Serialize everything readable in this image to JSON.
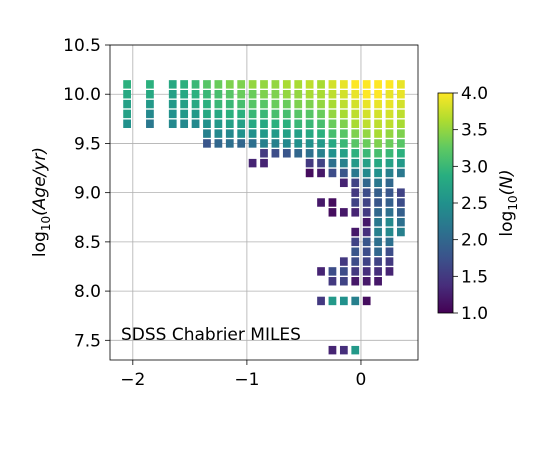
{
  "chart_data": {
    "type": "heatmap",
    "title": "",
    "xlabel": "",
    "xlim": [
      -2.2,
      0.5
    ],
    "ylim": [
      7.3,
      10.5
    ],
    "xticks": [
      -2,
      -1,
      0
    ],
    "xtick_labels": [
      "−2",
      "−1",
      "0"
    ],
    "yticks": [
      7.5,
      8.0,
      8.5,
      9.0,
      9.5,
      10.0,
      10.5
    ],
    "ytick_labels": [
      "7.5",
      "8.0",
      "8.5",
      "9.0",
      "9.5",
      "10.0",
      "10.5"
    ],
    "ylabel_prefix": "log",
    "ylabel_sub": "10",
    "ylabel_main": "(Age/yr)",
    "grid": true,
    "annotation": "SDSS Chabrier MILES",
    "annotation_position": "bottom-left",
    "colormap": "viridis",
    "colorbar": {
      "range": [
        1.0,
        4.0
      ],
      "ticks": [
        "1.0",
        "1.5",
        "2.0",
        "2.5",
        "3.0",
        "3.5",
        "4.0"
      ],
      "label_prefix": "log",
      "label_sub": "10",
      "label_main": "(N)"
    },
    "bin_size": {
      "dx": 0.1,
      "dy": 0.1
    },
    "cells": [
      [
        -2.05,
        10.1,
        2.9
      ],
      [
        -2.05,
        10.0,
        2.8
      ],
      [
        -2.05,
        9.9,
        2.7
      ],
      [
        -2.05,
        9.8,
        2.7
      ],
      [
        -2.05,
        9.7,
        2.5
      ],
      [
        -1.85,
        10.1,
        2.9
      ],
      [
        -1.85,
        10.0,
        2.8
      ],
      [
        -1.85,
        9.9,
        2.6
      ],
      [
        -1.85,
        9.8,
        2.4
      ],
      [
        -1.85,
        9.7,
        2.2
      ],
      [
        -1.65,
        10.1,
        2.8
      ],
      [
        -1.65,
        10.0,
        2.7
      ],
      [
        -1.65,
        9.9,
        2.6
      ],
      [
        -1.65,
        9.8,
        2.5
      ],
      [
        -1.65,
        9.7,
        2.4
      ],
      [
        -1.55,
        10.1,
        2.9
      ],
      [
        -1.55,
        10.0,
        2.8
      ],
      [
        -1.55,
        9.9,
        2.7
      ],
      [
        -1.55,
        9.8,
        2.6
      ],
      [
        -1.55,
        9.7,
        2.4
      ],
      [
        -1.45,
        10.1,
        3.0
      ],
      [
        -1.45,
        10.0,
        2.9
      ],
      [
        -1.45,
        9.9,
        2.8
      ],
      [
        -1.45,
        9.8,
        2.6
      ],
      [
        -1.45,
        9.7,
        2.4
      ],
      [
        -1.35,
        10.1,
        3.2
      ],
      [
        -1.35,
        10.0,
        3.0
      ],
      [
        -1.35,
        9.9,
        2.9
      ],
      [
        -1.35,
        9.8,
        2.8
      ],
      [
        -1.35,
        9.7,
        2.5
      ],
      [
        -1.35,
        9.6,
        2.3
      ],
      [
        -1.35,
        9.5,
        1.8
      ],
      [
        -1.25,
        10.1,
        3.3
      ],
      [
        -1.25,
        10.0,
        3.1
      ],
      [
        -1.25,
        9.9,
        3.0
      ],
      [
        -1.25,
        9.8,
        2.8
      ],
      [
        -1.25,
        9.7,
        2.6
      ],
      [
        -1.25,
        9.6,
        2.4
      ],
      [
        -1.25,
        9.5,
        2.0
      ],
      [
        -1.15,
        10.1,
        3.4
      ],
      [
        -1.15,
        10.0,
        3.2
      ],
      [
        -1.15,
        9.9,
        3.0
      ],
      [
        -1.15,
        9.8,
        2.9
      ],
      [
        -1.15,
        9.7,
        2.7
      ],
      [
        -1.15,
        9.6,
        2.4
      ],
      [
        -1.15,
        9.5,
        2.1
      ],
      [
        -1.05,
        10.1,
        3.4
      ],
      [
        -1.05,
        10.0,
        3.3
      ],
      [
        -1.05,
        9.9,
        3.1
      ],
      [
        -1.05,
        9.8,
        2.9
      ],
      [
        -1.05,
        9.7,
        2.7
      ],
      [
        -1.05,
        9.6,
        2.5
      ],
      [
        -1.05,
        9.5,
        2.0
      ],
      [
        -0.95,
        10.1,
        3.5
      ],
      [
        -0.95,
        10.0,
        3.3
      ],
      [
        -0.95,
        9.9,
        3.2
      ],
      [
        -0.95,
        9.8,
        3.0
      ],
      [
        -0.95,
        9.7,
        2.8
      ],
      [
        -0.95,
        9.6,
        2.5
      ],
      [
        -0.95,
        9.5,
        2.1
      ],
      [
        -0.95,
        9.3,
        1.3
      ],
      [
        -0.85,
        10.1,
        3.5
      ],
      [
        -0.85,
        10.0,
        3.4
      ],
      [
        -0.85,
        9.9,
        3.2
      ],
      [
        -0.85,
        9.8,
        3.0
      ],
      [
        -0.85,
        9.7,
        2.8
      ],
      [
        -0.85,
        9.6,
        2.6
      ],
      [
        -0.85,
        9.5,
        2.3
      ],
      [
        -0.85,
        9.4,
        1.5
      ],
      [
        -0.85,
        9.3,
        1.3
      ],
      [
        -0.75,
        10.1,
        3.5
      ],
      [
        -0.75,
        10.0,
        3.4
      ],
      [
        -0.75,
        9.9,
        3.3
      ],
      [
        -0.75,
        9.8,
        3.1
      ],
      [
        -0.75,
        9.7,
        2.9
      ],
      [
        -0.75,
        9.6,
        2.6
      ],
      [
        -0.75,
        9.5,
        2.3
      ],
      [
        -0.75,
        9.4,
        1.7
      ],
      [
        -0.65,
        10.1,
        3.6
      ],
      [
        -0.65,
        10.0,
        3.5
      ],
      [
        -0.65,
        9.9,
        3.3
      ],
      [
        -0.65,
        9.8,
        3.1
      ],
      [
        -0.65,
        9.7,
        2.9
      ],
      [
        -0.65,
        9.6,
        2.7
      ],
      [
        -0.65,
        9.5,
        2.4
      ],
      [
        -0.65,
        9.4,
        1.8
      ],
      [
        -0.55,
        10.1,
        3.6
      ],
      [
        -0.55,
        10.0,
        3.5
      ],
      [
        -0.55,
        9.9,
        3.4
      ],
      [
        -0.55,
        9.8,
        3.2
      ],
      [
        -0.55,
        9.7,
        3.0
      ],
      [
        -0.55,
        9.6,
        2.7
      ],
      [
        -0.55,
        9.5,
        2.5
      ],
      [
        -0.55,
        9.4,
        2.0
      ],
      [
        -0.45,
        10.1,
        3.7
      ],
      [
        -0.45,
        10.0,
        3.6
      ],
      [
        -0.45,
        9.9,
        3.4
      ],
      [
        -0.45,
        9.8,
        3.2
      ],
      [
        -0.45,
        9.7,
        3.0
      ],
      [
        -0.45,
        9.6,
        2.8
      ],
      [
        -0.45,
        9.5,
        2.5
      ],
      [
        -0.45,
        9.4,
        2.1
      ],
      [
        -0.45,
        9.3,
        1.5
      ],
      [
        -0.45,
        9.2,
        1.1
      ],
      [
        -0.35,
        10.1,
        3.6
      ],
      [
        -0.35,
        10.0,
        3.6
      ],
      [
        -0.35,
        9.9,
        3.5
      ],
      [
        -0.35,
        9.8,
        3.3
      ],
      [
        -0.35,
        9.7,
        3.1
      ],
      [
        -0.35,
        9.6,
        2.9
      ],
      [
        -0.35,
        9.5,
        2.6
      ],
      [
        -0.35,
        9.4,
        2.3
      ],
      [
        -0.35,
        9.3,
        1.6
      ],
      [
        -0.35,
        9.2,
        1.2
      ],
      [
        -0.35,
        8.9,
        1.2
      ],
      [
        -0.35,
        8.2,
        1.3
      ],
      [
        -0.35,
        7.9,
        1.5
      ],
      [
        -0.25,
        10.1,
        3.8
      ],
      [
        -0.25,
        10.0,
        3.7
      ],
      [
        -0.25,
        9.9,
        3.6
      ],
      [
        -0.25,
        9.8,
        3.5
      ],
      [
        -0.25,
        9.7,
        3.3
      ],
      [
        -0.25,
        9.6,
        3.1
      ],
      [
        -0.25,
        9.5,
        2.8
      ],
      [
        -0.25,
        9.4,
        2.5
      ],
      [
        -0.25,
        9.3,
        2.1
      ],
      [
        -0.25,
        9.2,
        1.7
      ],
      [
        -0.25,
        8.9,
        1.1
      ],
      [
        -0.25,
        8.8,
        1.1
      ],
      [
        -0.25,
        8.2,
        1.7
      ],
      [
        -0.25,
        8.1,
        1.5
      ],
      [
        -0.25,
        7.9,
        2.6
      ],
      [
        -0.25,
        7.4,
        1.3
      ],
      [
        -0.15,
        10.1,
        3.9
      ],
      [
        -0.15,
        10.0,
        3.8
      ],
      [
        -0.15,
        9.9,
        3.7
      ],
      [
        -0.15,
        9.8,
        3.6
      ],
      [
        -0.15,
        9.7,
        3.4
      ],
      [
        -0.15,
        9.6,
        3.2
      ],
      [
        -0.15,
        9.5,
        3.0
      ],
      [
        -0.15,
        9.4,
        2.7
      ],
      [
        -0.15,
        9.3,
        2.3
      ],
      [
        -0.15,
        9.2,
        1.8
      ],
      [
        -0.15,
        9.1,
        1.3
      ],
      [
        -0.15,
        8.8,
        1.2
      ],
      [
        -0.15,
        8.3,
        1.5
      ],
      [
        -0.15,
        8.2,
        1.7
      ],
      [
        -0.15,
        8.1,
        1.6
      ],
      [
        -0.15,
        7.9,
        2.5
      ],
      [
        -0.15,
        7.4,
        1.4
      ],
      [
        -0.05,
        10.1,
        4.0
      ],
      [
        -0.05,
        10.0,
        3.9
      ],
      [
        -0.05,
        9.9,
        3.8
      ],
      [
        -0.05,
        9.8,
        3.7
      ],
      [
        -0.05,
        9.7,
        3.6
      ],
      [
        -0.05,
        9.6,
        3.4
      ],
      [
        -0.05,
        9.5,
        3.2
      ],
      [
        -0.05,
        9.4,
        2.9
      ],
      [
        -0.05,
        9.3,
        2.6
      ],
      [
        -0.05,
        9.2,
        2.2
      ],
      [
        -0.05,
        9.1,
        1.6
      ],
      [
        -0.05,
        9.0,
        1.5
      ],
      [
        -0.05,
        8.9,
        1.6
      ],
      [
        -0.05,
        8.8,
        1.3
      ],
      [
        -0.05,
        8.6,
        1.2
      ],
      [
        -0.05,
        8.5,
        1.6
      ],
      [
        -0.05,
        8.4,
        1.8
      ],
      [
        -0.05,
        8.3,
        1.7
      ],
      [
        -0.05,
        8.2,
        1.5
      ],
      [
        -0.05,
        8.1,
        1.2
      ],
      [
        -0.05,
        7.9,
        2.3
      ],
      [
        -0.05,
        7.4,
        2.6
      ],
      [
        0.05,
        10.1,
        4.0
      ],
      [
        0.05,
        10.0,
        4.0
      ],
      [
        0.05,
        9.9,
        3.9
      ],
      [
        0.05,
        9.8,
        3.8
      ],
      [
        0.05,
        9.7,
        3.7
      ],
      [
        0.05,
        9.6,
        3.5
      ],
      [
        0.05,
        9.5,
        3.3
      ],
      [
        0.05,
        9.4,
        3.0
      ],
      [
        0.05,
        9.3,
        2.7
      ],
      [
        0.05,
        9.2,
        2.4
      ],
      [
        0.05,
        9.1,
        2.0
      ],
      [
        0.05,
        9.0,
        1.7
      ],
      [
        0.05,
        8.9,
        1.6
      ],
      [
        0.05,
        8.8,
        1.5
      ],
      [
        0.05,
        8.7,
        1.2
      ],
      [
        0.05,
        8.6,
        1.4
      ],
      [
        0.05,
        8.5,
        1.8
      ],
      [
        0.05,
        8.4,
        1.7
      ],
      [
        0.05,
        8.3,
        1.6
      ],
      [
        0.05,
        8.2,
        1.4
      ],
      [
        0.05,
        8.1,
        1.2
      ],
      [
        0.05,
        7.9,
        1.1
      ],
      [
        0.15,
        10.1,
        4.0
      ],
      [
        0.15,
        10.0,
        4.0
      ],
      [
        0.15,
        9.9,
        3.9
      ],
      [
        0.15,
        9.8,
        3.8
      ],
      [
        0.15,
        9.7,
        3.7
      ],
      [
        0.15,
        9.6,
        3.6
      ],
      [
        0.15,
        9.5,
        3.4
      ],
      [
        0.15,
        9.4,
        3.1
      ],
      [
        0.15,
        9.3,
        2.8
      ],
      [
        0.15,
        9.2,
        2.5
      ],
      [
        0.15,
        9.1,
        2.2
      ],
      [
        0.15,
        9.0,
        1.9
      ],
      [
        0.15,
        8.9,
        1.8
      ],
      [
        0.15,
        8.8,
        2.0
      ],
      [
        0.15,
        8.7,
        2.2
      ],
      [
        0.15,
        8.6,
        2.3
      ],
      [
        0.15,
        8.5,
        2.1
      ],
      [
        0.15,
        8.4,
        2.0
      ],
      [
        0.15,
        8.3,
        1.6
      ],
      [
        0.15,
        8.2,
        1.4
      ],
      [
        0.15,
        8.1,
        1.2
      ],
      [
        0.25,
        10.1,
        4.0
      ],
      [
        0.25,
        10.0,
        3.9
      ],
      [
        0.25,
        9.9,
        3.9
      ],
      [
        0.25,
        9.8,
        3.8
      ],
      [
        0.25,
        9.7,
        3.7
      ],
      [
        0.25,
        9.6,
        3.5
      ],
      [
        0.25,
        9.5,
        3.3
      ],
      [
        0.25,
        9.4,
        3.0
      ],
      [
        0.25,
        9.3,
        2.7
      ],
      [
        0.25,
        9.2,
        2.3
      ],
      [
        0.25,
        9.1,
        2.0
      ],
      [
        0.25,
        9.0,
        1.8
      ],
      [
        0.25,
        8.9,
        1.9
      ],
      [
        0.25,
        8.8,
        2.1
      ],
      [
        0.25,
        8.7,
        2.4
      ],
      [
        0.25,
        8.6,
        2.4
      ],
      [
        0.25,
        8.5,
        2.1
      ],
      [
        0.25,
        8.4,
        1.7
      ],
      [
        0.25,
        8.3,
        1.5
      ],
      [
        0.25,
        8.2,
        1.3
      ],
      [
        0.35,
        10.1,
        3.9
      ],
      [
        0.35,
        10.0,
        3.9
      ],
      [
        0.35,
        9.9,
        3.8
      ],
      [
        0.35,
        9.8,
        3.7
      ],
      [
        0.35,
        9.7,
        3.6
      ],
      [
        0.35,
        9.6,
        3.4
      ],
      [
        0.35,
        9.5,
        3.2
      ],
      [
        0.35,
        9.4,
        2.9
      ],
      [
        0.35,
        9.3,
        2.6
      ],
      [
        0.35,
        9.2,
        2.2
      ],
      [
        0.35,
        9.0,
        1.6
      ],
      [
        0.35,
        8.9,
        1.7
      ],
      [
        0.35,
        8.8,
        1.9
      ],
      [
        0.35,
        8.7,
        2.1
      ],
      [
        0.35,
        8.6,
        2.3
      ]
    ]
  }
}
